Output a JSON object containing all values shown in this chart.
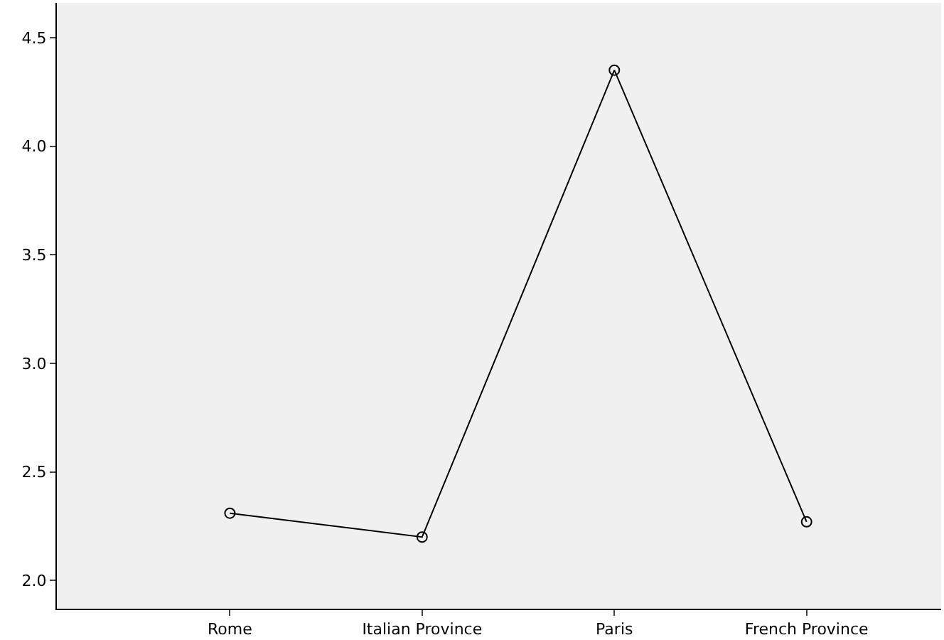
{
  "chart_data": {
    "type": "line",
    "categories": [
      "Rome",
      "Italian Province",
      "Paris",
      "French Province"
    ],
    "series": [
      {
        "color": "#000000",
        "values": [
          2.31,
          2.2,
          4.35,
          2.27
        ]
      }
    ],
    "ylim": [
      1.87,
      4.66
    ],
    "yticks": [
      {
        "value": 2,
        "label": "2.0"
      },
      2.5,
      {
        "value": 3,
        "label": "3.0"
      },
      3.5,
      {
        "value": 4,
        "label": "4.0"
      },
      4.5
    ],
    "marker": "circle",
    "line_style": "solid",
    "grid": false,
    "legend": false
  }
}
